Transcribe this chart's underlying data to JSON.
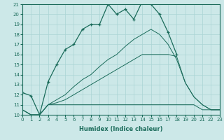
{
  "xlabel": "Humidex (Indice chaleur)",
  "bg_color": "#cce8e8",
  "grid_color": "#aad4d4",
  "line_color": "#1a6b5a",
  "xlim": [
    0,
    23
  ],
  "ylim": [
    10,
    21
  ],
  "xticks": [
    0,
    1,
    2,
    3,
    4,
    5,
    6,
    7,
    8,
    9,
    10,
    11,
    12,
    13,
    14,
    15,
    16,
    17,
    18,
    19,
    20,
    21,
    22,
    23
  ],
  "yticks": [
    10,
    11,
    12,
    13,
    14,
    15,
    16,
    17,
    18,
    19,
    20,
    21
  ],
  "series1_x": [
    0,
    1,
    2,
    3,
    4,
    5,
    6,
    7,
    8,
    9,
    10,
    11,
    12,
    13,
    14,
    15,
    16,
    17,
    18
  ],
  "series1_y": [
    12.2,
    11.9,
    10.0,
    13.3,
    15.0,
    16.5,
    17.0,
    18.5,
    19.0,
    19.0,
    21.0,
    20.0,
    20.5,
    19.5,
    21.3,
    21.0,
    20.0,
    18.2,
    16.0
  ],
  "series2_x": [
    0,
    1,
    2,
    3,
    4,
    5,
    6,
    7,
    8,
    9,
    10,
    11,
    12,
    13,
    14,
    15,
    16,
    17,
    18,
    19,
    20,
    21,
    22,
    23
  ],
  "series2_y": [
    10.5,
    10.0,
    10.0,
    11.0,
    11.0,
    11.0,
    11.0,
    11.0,
    11.0,
    11.0,
    11.0,
    11.0,
    11.0,
    11.0,
    11.0,
    11.0,
    11.0,
    11.0,
    11.0,
    11.0,
    11.0,
    10.5,
    10.5,
    10.5
  ],
  "series3_x": [
    0,
    1,
    2,
    3,
    4,
    5,
    6,
    7,
    8,
    9,
    10,
    11,
    12,
    13,
    14,
    15,
    16,
    17,
    18,
    19,
    20,
    21,
    22,
    23
  ],
  "series3_y": [
    10.5,
    10.0,
    10.0,
    11.0,
    11.2,
    11.5,
    12.0,
    12.5,
    13.0,
    13.5,
    14.0,
    14.5,
    15.0,
    15.5,
    16.0,
    16.0,
    16.0,
    16.0,
    15.8,
    13.2,
    11.8,
    11.0,
    10.5,
    10.5
  ],
  "series4_x": [
    0,
    1,
    2,
    3,
    4,
    5,
    6,
    7,
    8,
    9,
    10,
    11,
    12,
    13,
    14,
    15,
    16,
    17,
    18,
    19,
    20,
    21,
    22,
    23
  ],
  "series4_y": [
    10.5,
    10.0,
    10.0,
    11.0,
    11.5,
    12.0,
    12.8,
    13.5,
    14.0,
    14.8,
    15.5,
    16.0,
    16.8,
    17.5,
    18.0,
    18.5,
    18.0,
    17.0,
    15.5,
    13.2,
    11.8,
    11.0,
    10.5,
    10.5
  ],
  "xlabel_fontsize": 6.0,
  "tick_fontsize": 5.0
}
